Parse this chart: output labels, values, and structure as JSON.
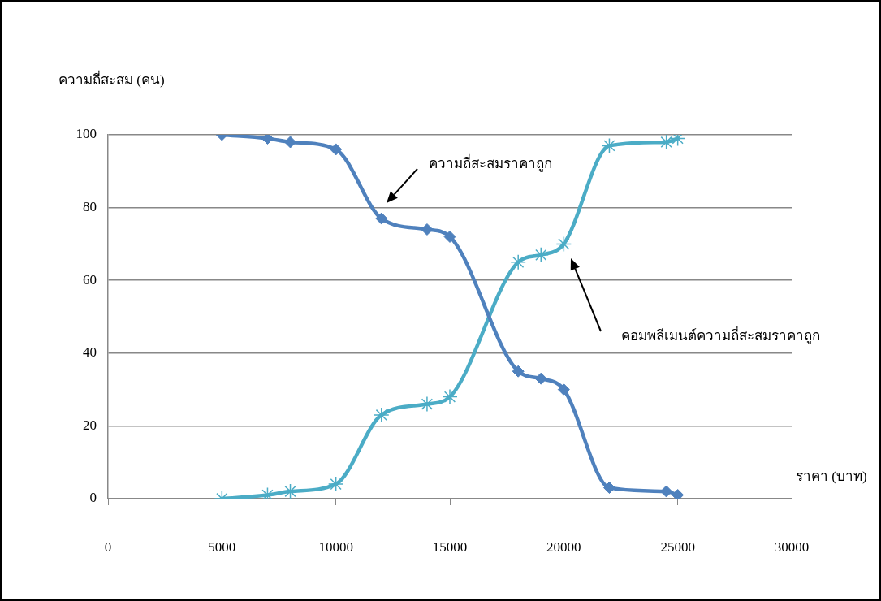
{
  "chart_data": {
    "type": "line",
    "ylabel": "ความถี่สะสม (คน)",
    "xlabel": "ราคา (บาท)",
    "xlim": [
      0,
      30000
    ],
    "xticks": [
      0,
      5000,
      10000,
      15000,
      20000,
      25000,
      30000
    ],
    "ylim": [
      0,
      100
    ],
    "yticks": [
      0,
      20,
      40,
      60,
      80,
      100
    ],
    "grid": "y",
    "legend": false,
    "line_style": "solid",
    "series": [
      {
        "color": "#4f81bd",
        "marker": "diamond",
        "x": [
          5000,
          7000,
          8000,
          10000,
          12000,
          14000,
          15000,
          18000,
          19000,
          20000,
          22000,
          24500,
          25000
        ],
        "values": [
          100,
          99,
          98,
          96,
          77,
          74,
          72,
          35,
          33,
          30,
          3,
          2,
          1
        ]
      },
      {
        "color": "#4bacc6",
        "marker": "cross",
        "x": [
          5000,
          7000,
          8000,
          10000,
          12000,
          14000,
          15000,
          18000,
          19000,
          20000,
          22000,
          24500,
          25000
        ],
        "values": [
          0,
          1,
          2,
          4,
          23,
          26,
          28,
          65,
          67,
          70,
          97,
          98,
          99
        ]
      }
    ],
    "annotations": [
      "ความถี่สะสมราคาถูก",
      "คอมพลีเมนต์ความถี่สะสมราคาถูก"
    ]
  }
}
